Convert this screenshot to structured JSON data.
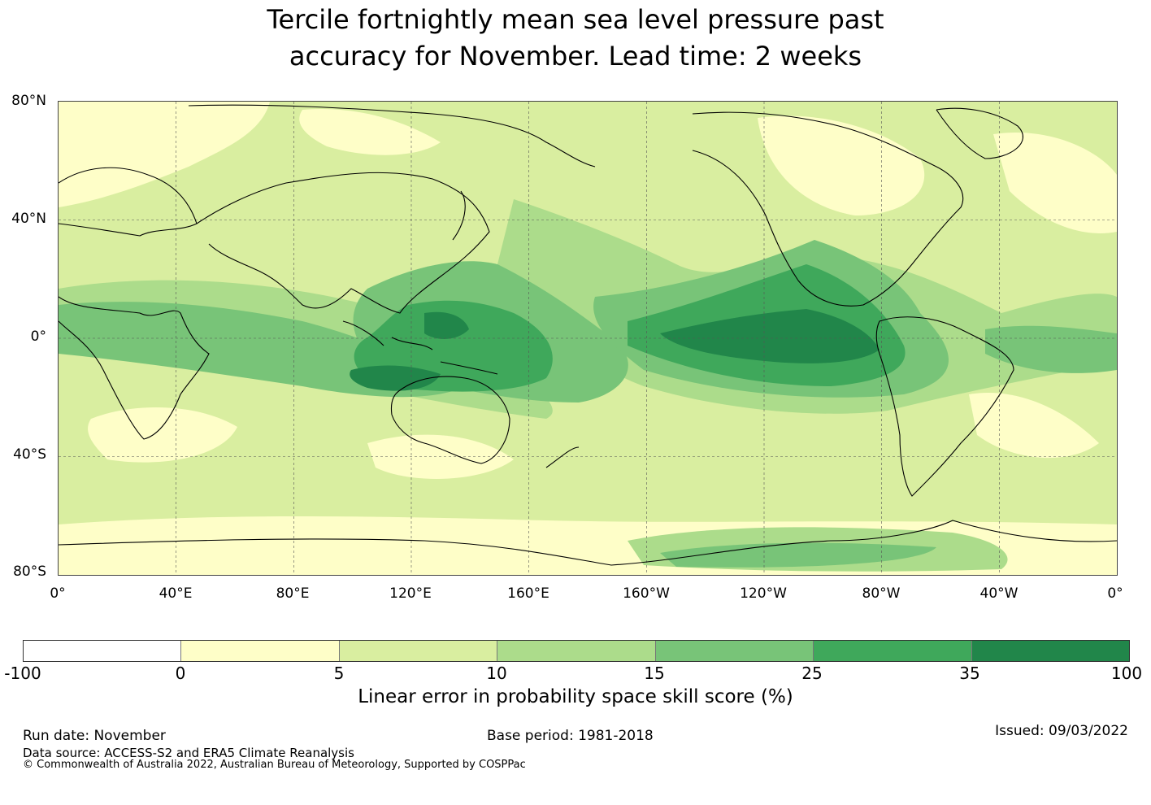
{
  "title_line1": "Tercile fortnightly mean sea level pressure past",
  "title_line2": "accuracy for November. Lead time: 2 weeks",
  "lat_labels": [
    "80°N",
    "40°N",
    "0°",
    "40°S",
    "80°S"
  ],
  "lon_labels": [
    "0°",
    "40°E",
    "80°E",
    "120°E",
    "160°E",
    "160°W",
    "120°W",
    "80°W",
    "40°W",
    "0°"
  ],
  "colorbar": {
    "title": "Linear error in probability space skill score (%)",
    "ticks": [
      "-100",
      "0",
      "5",
      "10",
      "15",
      "25",
      "35",
      "100"
    ],
    "colors": [
      "#ffffff",
      "#fefec8",
      "#d9eea0",
      "#acdc8b",
      "#78c478",
      "#3fa85b",
      "#21864a"
    ]
  },
  "footer": {
    "run_date": "Run date: November",
    "base_period": "Base period: 1981-2018",
    "issued": "Issued: 09/03/2022",
    "data_source": "Data source: ACCESS-S2 and ERA5 Climate Reanalysis",
    "copyright": "© Commonwealth of Australia 2022, Australian Bureau of Meteorology, Supported by COSPPac"
  }
}
